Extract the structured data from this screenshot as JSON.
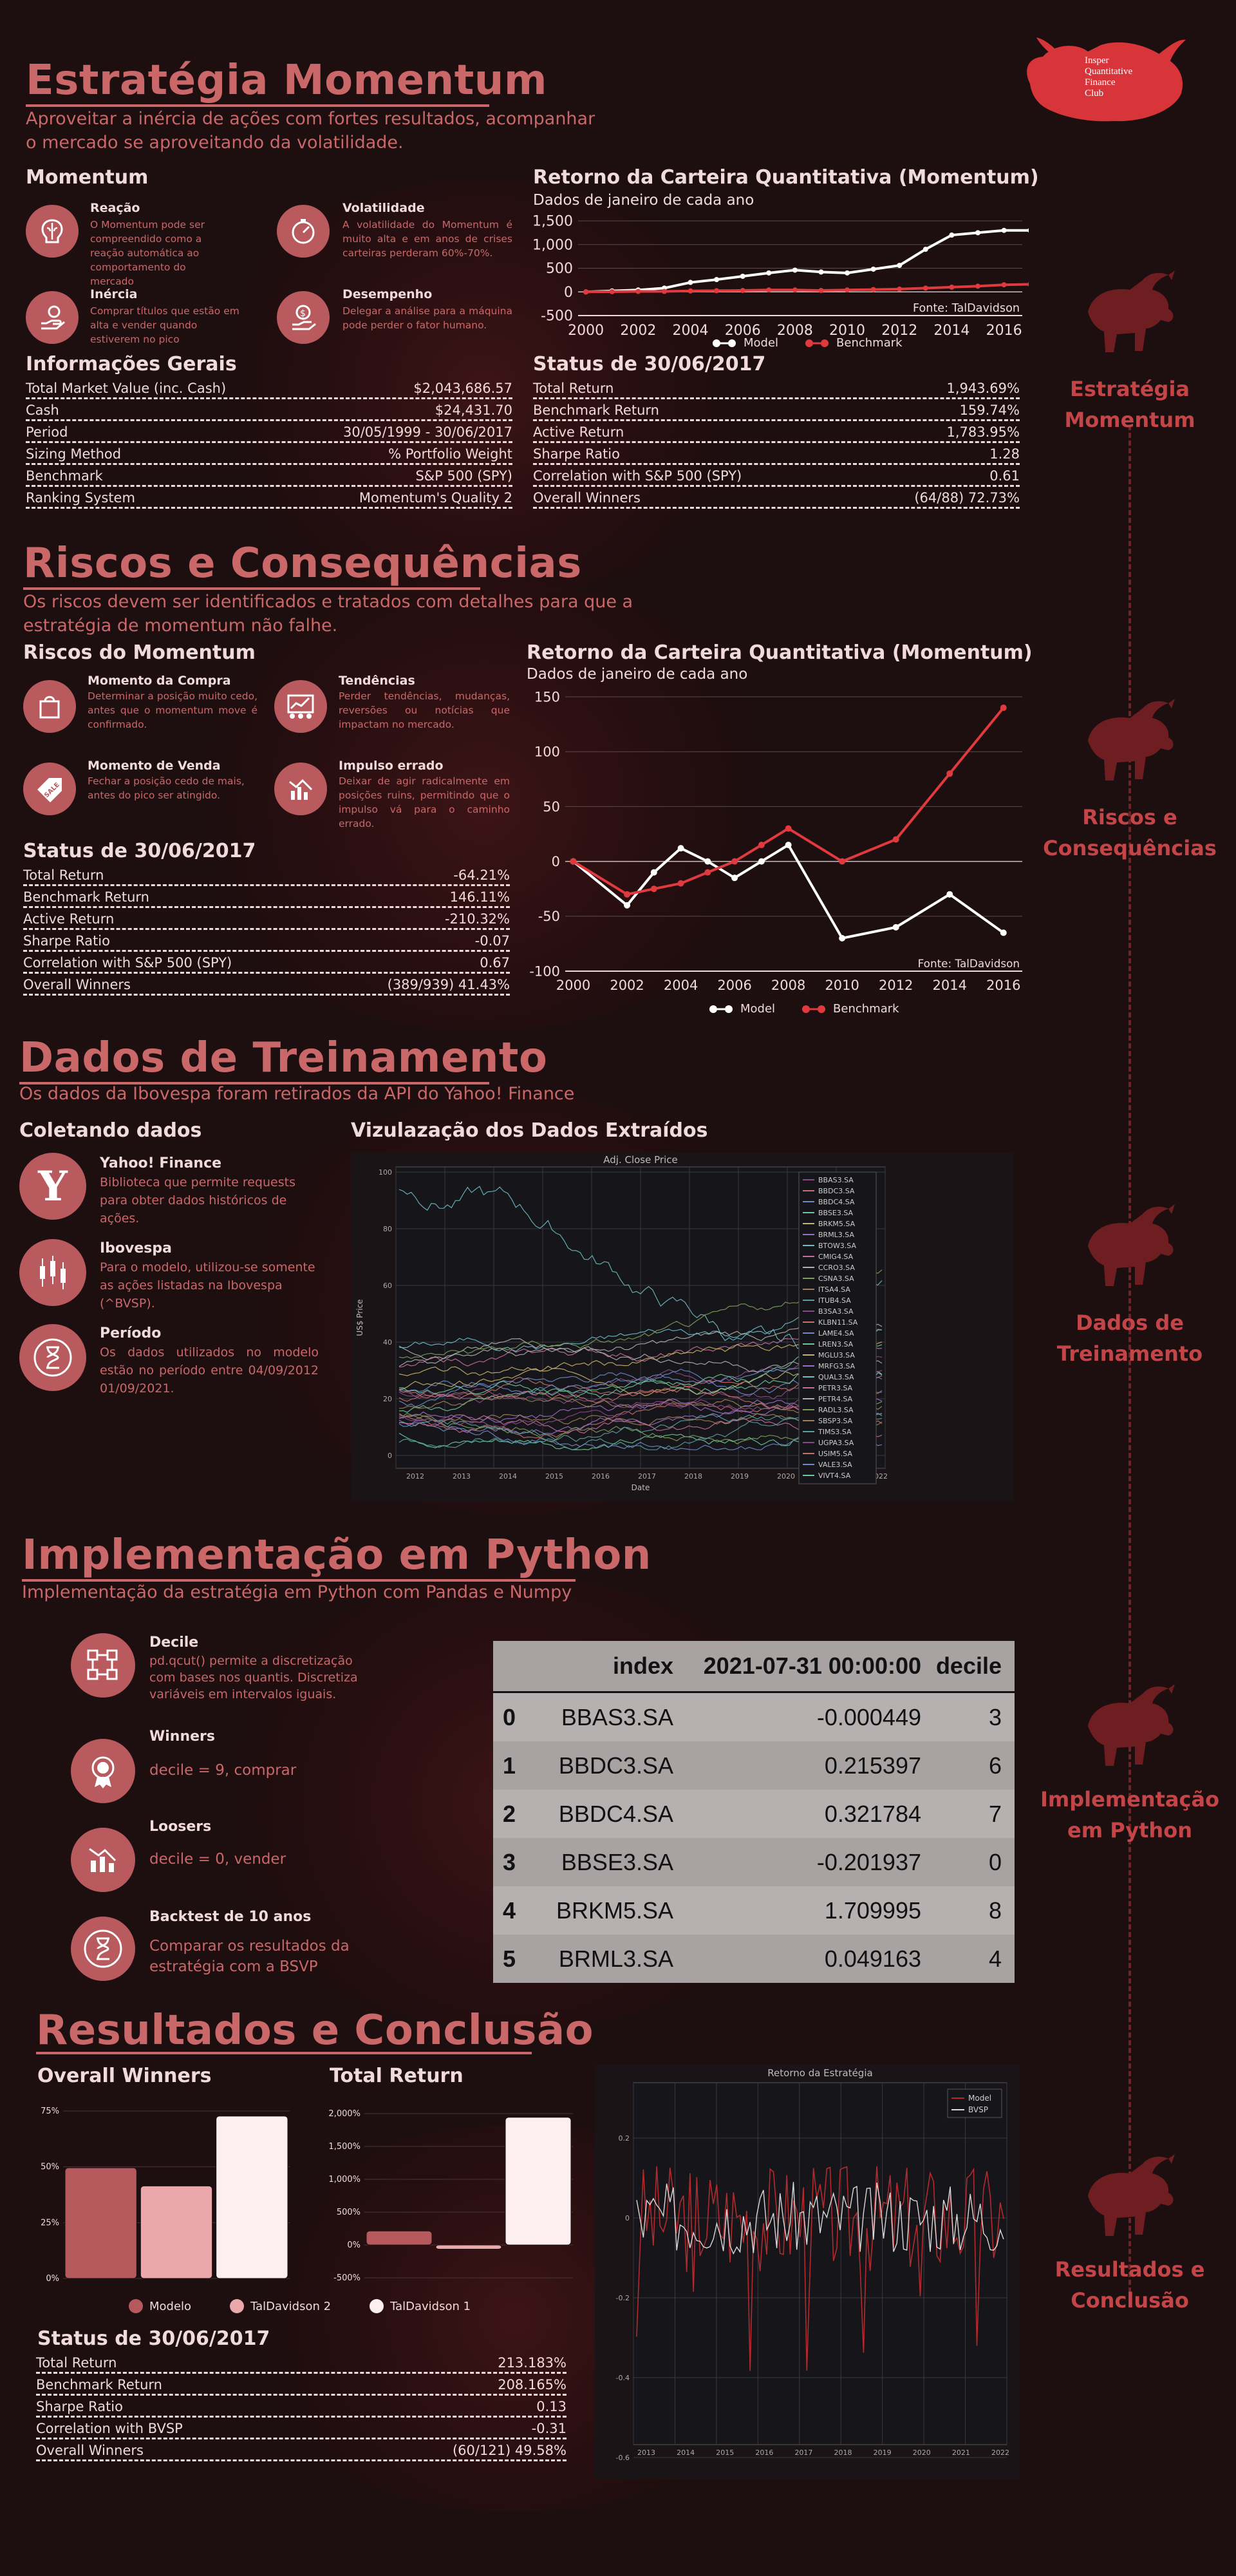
{
  "logo": {
    "lines": [
      "Insper",
      "Quantitative",
      "Finance",
      "Club"
    ],
    "letters": [
      "I",
      "Q",
      "F",
      "C"
    ]
  },
  "sidebar": {
    "items": [
      {
        "line1": "Estratégia",
        "line2": "Momentum"
      },
      {
        "line1": "Riscos e",
        "line2": "Consequências"
      },
      {
        "line1": "Dados de",
        "line2": "Treinamento"
      },
      {
        "line1": "Implementação",
        "line2": "em Python"
      },
      {
        "line1": "Resultados e",
        "line2": "Conclusão"
      }
    ]
  },
  "s1": {
    "title": "Estratégia Momentum",
    "subtitle": "Aproveitar a inércia de ações com fortes resultados, acompanhar o mercado se aproveitando da volatilidade.",
    "block_title": "Momentum",
    "items": [
      {
        "title": "Reação",
        "text": "O Momentum pode ser compreendido como a reação automática ao comportamento do mercado"
      },
      {
        "title": "Volatilidade",
        "text": "A volatilidade do Momentum é muito alta e em anos de crises carteiras perderam 60%-70%."
      },
      {
        "title": "Inércia",
        "text": "Comprar títulos que estão em alta e vender quando estiverem no pico"
      },
      {
        "title": "Desempenho",
        "text": "Delegar a análise para a máquina pode perder o fator humano."
      }
    ],
    "info_title": "Informações Gerais",
    "info": [
      {
        "k": "Total Market Value (inc. Cash)",
        "v": "$2,043,686.57"
      },
      {
        "k": "Cash",
        "v": "$24,431.70"
      },
      {
        "k": "Period",
        "v": "30/05/1999 - 30/06/2017"
      },
      {
        "k": "Sizing Method",
        "v": "% Portfolio Weight"
      },
      {
        "k": "Benchmark",
        "v": "S&P 500 (SPY)"
      },
      {
        "k": "Ranking System",
        "v": "Momentum's Quality 2"
      }
    ],
    "status_title": "Status de 30/06/2017",
    "status": [
      {
        "k": "Total Return",
        "v": "1,943.69%"
      },
      {
        "k": "Benchmark Return",
        "v": "159.74%"
      },
      {
        "k": "Active Return",
        "v": "1,783.95%"
      },
      {
        "k": "Sharpe Ratio",
        "v": "1.28"
      },
      {
        "k": "Correlation with S&P 500 (SPY)",
        "v": "0.61"
      },
      {
        "k": "Overall Winners",
        "v": "(64/88) 72.73%"
      }
    ],
    "chart_title": "Retorno da Carteira Quantitativa (Momentum)",
    "chart_subtitle": "Dados de janeiro de cada ano",
    "chart_source": "Fonte: TalDavidson"
  },
  "s2": {
    "title": "Riscos e Consequências",
    "subtitle": "Os riscos devem ser identificados e tratados com detalhes para que a estratégia de momentum não falhe.",
    "block_title": "Riscos do Momentum",
    "items": [
      {
        "title": "Momento da Compra",
        "text": "Determinar a posição muito cedo, antes que o momentum move é confirmado."
      },
      {
        "title": "Tendências",
        "text": "Perder tendências, mudanças, reversões ou notícias que impactam no mercado."
      },
      {
        "title": "Momento de Venda",
        "text": "Fechar a posição cedo de mais, antes do pico ser atingido."
      },
      {
        "title": "Impulso errado",
        "text": "Deixar de agir radicalmente em posições ruins, permitindo que o impulso vá para o caminho errado."
      }
    ],
    "status_title": "Status de 30/06/2017",
    "status": [
      {
        "k": "Total Return",
        "v": "-64.21%"
      },
      {
        "k": "Benchmark Return",
        "v": "146.11%"
      },
      {
        "k": "Active Return",
        "v": "-210.32%"
      },
      {
        "k": "Sharpe Ratio",
        "v": "-0.07"
      },
      {
        "k": "Correlation with S&P 500 (SPY)",
        "v": "0.67"
      },
      {
        "k": "Overall Winners",
        "v": "(389/939) 41.43%"
      }
    ],
    "chart_title": "Retorno da Carteira Quantitativa (Momentum)",
    "chart_subtitle": "Dados de janeiro de cada ano",
    "chart_source": "Fonte: TalDavidson"
  },
  "s3": {
    "title": "Dados de Treinamento",
    "subtitle": "Os dados da Ibovespa foram retirados da API do Yahoo! Finance",
    "block_title": "Coletando dados",
    "viz_title": "Vizulazação dos Dados Extraídos",
    "items": [
      {
        "title": "Yahoo! Finance",
        "text": "Biblioteca que permite requests para obter dados históricos de ações."
      },
      {
        "title": "Ibovespa",
        "text": "Para o modelo, utilizou-se somente as ações listadas na Ibovespa (^BVSP)."
      },
      {
        "title": "Período",
        "text": "Os dados utilizados no modelo estão no período entre 04/09/2012 01/09/2021."
      }
    ],
    "plot_title": "Adj. Close Price",
    "plot_ylabel": "US$ Price",
    "plot_xlabel": "Date",
    "tickers": [
      "BBAS3.SA",
      "BBDC3.SA",
      "BBDC4.SA",
      "BBSE3.SA",
      "BRKM5.SA",
      "BRML3.SA",
      "BTOW3.SA",
      "CMIG4.SA",
      "CCRO3.SA",
      "CSNA3.SA",
      "ITSA4.SA",
      "ITUB4.SA",
      "B3SA3.SA",
      "KLBN11.SA",
      "LAME4.SA",
      "LREN3.SA",
      "MGLU3.SA",
      "MRFG3.SA",
      "QUAL3.SA",
      "PETR3.SA",
      "PETR4.SA",
      "RADL3.SA",
      "SBSP3.SA",
      "TIMS3.SA",
      "UGPA3.SA",
      "USIM5.SA",
      "VALE3.SA",
      "VIVT4.SA"
    ]
  },
  "s4": {
    "title": "Implementação em Python",
    "subtitle": "Implementação da estratégia em Python com Pandas e Numpy",
    "items": [
      {
        "title": "Decile",
        "text": "pd.qcut() permite a discretização com bases nos quantis. Discretiza variáveis em intervalos iguais."
      },
      {
        "title": "Winners",
        "text": "decile = 9, comprar"
      },
      {
        "title": "Loosers",
        "text": "decile = 0, vender"
      },
      {
        "title": "Backtest de 10 anos",
        "text": "Comparar os resultados da estratégia com a BSVP"
      }
    ],
    "table": {
      "headers": [
        "",
        "index",
        "2021-07-31 00:00:00",
        "decile"
      ],
      "rows": [
        [
          "0",
          "BBAS3.SA",
          "-0.000449",
          "3"
        ],
        [
          "1",
          "BBDC3.SA",
          "0.215397",
          "6"
        ],
        [
          "2",
          "BBDC4.SA",
          "0.321784",
          "7"
        ],
        [
          "3",
          "BBSE3.SA",
          "-0.201937",
          "0"
        ],
        [
          "4",
          "BRKM5.SA",
          "1.709995",
          "8"
        ],
        [
          "5",
          "BRML3.SA",
          "0.049163",
          "4"
        ]
      ]
    }
  },
  "s5": {
    "title": "Resultados e Conclusão",
    "winners_title": "Overall Winners",
    "return_title": "Total Return",
    "legend": [
      "Modelo",
      "TalDavidson 2",
      "TalDavidson 1"
    ],
    "status_title": "Status de 30/06/2017",
    "status": [
      {
        "k": "Total Return",
        "v": "213.183%"
      },
      {
        "k": "Benchmark Return",
        "v": "208.165%"
      },
      {
        "k": "Sharpe Ratio",
        "v": "0.13"
      },
      {
        "k": "Correlation with BVSP",
        "v": "-0.31"
      },
      {
        "k": "Overall Winners",
        "v": "(60/121) 49.58%"
      }
    ],
    "plot_title": "Retorno da Estratégia",
    "plot_legend": [
      "Model",
      "BVSP"
    ]
  },
  "colors": {
    "accent": "#c96769",
    "bg": "#1d0e0f",
    "red": "#e03a3e",
    "white": "#ffffff"
  },
  "chart_data": [
    {
      "type": "line",
      "title": "Retorno da Carteira Quantitativa (Momentum)",
      "subtitle": "Dados de janeiro de cada ano",
      "x": [
        2000,
        2001,
        2002,
        2003,
        2004,
        2005,
        2006,
        2007,
        2008,
        2009,
        2010,
        2011,
        2012,
        2013,
        2014,
        2015,
        2016,
        2017
      ],
      "series": [
        {
          "name": "Model",
          "color": "#ffffff",
          "values": [
            0,
            20,
            40,
            80,
            200,
            260,
            330,
            400,
            460,
            420,
            400,
            480,
            560,
            900,
            1200,
            1250,
            1300,
            1300
          ]
        },
        {
          "name": "Benchmark",
          "color": "#e03a3e",
          "values": [
            0,
            5,
            10,
            10,
            20,
            25,
            30,
            40,
            40,
            30,
            40,
            50,
            60,
            80,
            100,
            120,
            150,
            160
          ]
        }
      ],
      "xticks": [
        2000,
        2002,
        2004,
        2006,
        2008,
        2010,
        2012,
        2014,
        2016
      ],
      "yticks": [
        -500,
        0,
        500,
        1000,
        1500
      ],
      "ylim": [
        -500,
        1500
      ],
      "source": "Fonte: TalDavidson"
    },
    {
      "type": "line",
      "title": "Retorno da Carteira Quantitativa (Momentum)",
      "subtitle": "Dados de janeiro de cada ano",
      "x": [
        2000,
        2002,
        2003,
        2004,
        2005,
        2006,
        2007,
        2008,
        2010,
        2012,
        2014,
        2016
      ],
      "series": [
        {
          "name": "Model",
          "color": "#ffffff",
          "values": [
            0,
            -40,
            -10,
            12,
            0,
            -15,
            0,
            15,
            -70,
            -60,
            -30,
            -65
          ]
        },
        {
          "name": "Benchmark",
          "color": "#e03a3e",
          "values": [
            0,
            -30,
            -25,
            -20,
            -10,
            0,
            15,
            30,
            0,
            20,
            80,
            140
          ]
        }
      ],
      "xticks": [
        2000,
        2002,
        2004,
        2006,
        2008,
        2010,
        2012,
        2014,
        2016
      ],
      "yticks": [
        -100,
        -50,
        0,
        50,
        100,
        150
      ],
      "ylim": [
        -100,
        150
      ],
      "source": "Fonte: TalDavidson"
    },
    {
      "type": "bar",
      "title": "Overall Winners",
      "categories": [
        "Modelo",
        "TalDavidson 2",
        "TalDavidson 1"
      ],
      "values": [
        49.58,
        41.43,
        72.73
      ],
      "colors": [
        "#b6595d",
        "#eba8ab",
        "#fdeef0"
      ],
      "yticks": [
        "0%",
        "25%",
        "50%",
        "75%"
      ],
      "ylim": [
        0,
        75
      ]
    },
    {
      "type": "bar",
      "title": "Total Return",
      "categories": [
        "Modelo",
        "TalDavidson 2",
        "TalDavidson 1"
      ],
      "values": [
        213.183,
        -64.21,
        1943.69
      ],
      "colors": [
        "#b6595d",
        "#eba8ab",
        "#fdeef0"
      ],
      "yticks": [
        "-500%",
        "0%",
        "500%",
        "1,000%",
        "1,500%",
        "2,000%"
      ],
      "ylim": [
        -500,
        2000
      ]
    }
  ]
}
